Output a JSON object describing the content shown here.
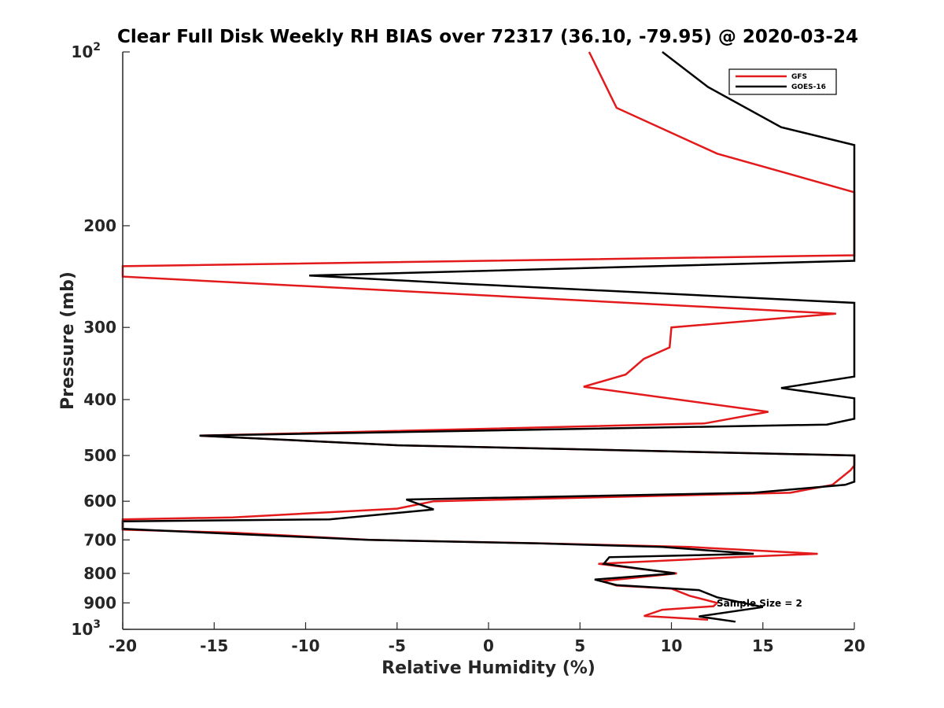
{
  "chart_data": {
    "type": "line",
    "title": "Clear Full Disk Weekly RH BIAS over 72317 (36.10, -79.95) @ 2020-03-24",
    "xlabel": "Relative Humidity (%)",
    "ylabel": "Pressure (mb)",
    "xlim": [
      -20,
      20
    ],
    "ylim": [
      100,
      1000
    ],
    "y_scale": "log",
    "y_reversed": true,
    "grid": false,
    "legend_position": "top-right",
    "x_ticks": [
      -20,
      -15,
      -10,
      -5,
      0,
      5,
      10,
      15,
      20
    ],
    "x_tick_labels": [
      "-20",
      "-15",
      "-10",
      "-5",
      "0",
      "5",
      "10",
      "15",
      "20"
    ],
    "y_ticks": [
      100,
      200,
      300,
      400,
      500,
      600,
      700,
      800,
      900,
      1000
    ],
    "y_tick_labels": [
      {
        "base": "10",
        "exp": "2"
      },
      {
        "base": "200",
        "exp": ""
      },
      {
        "base": "300",
        "exp": ""
      },
      {
        "base": "400",
        "exp": ""
      },
      {
        "base": "500",
        "exp": ""
      },
      {
        "base": "600",
        "exp": ""
      },
      {
        "base": "700",
        "exp": ""
      },
      {
        "base": "800",
        "exp": ""
      },
      {
        "base": "900",
        "exp": ""
      },
      {
        "base": "10",
        "exp": "3"
      }
    ],
    "series": [
      {
        "name": "GFS",
        "color": "#e31a1c",
        "points": [
          [
            5.5,
            100
          ],
          [
            7,
            125
          ],
          [
            12.5,
            150
          ],
          [
            20,
            175
          ],
          [
            20,
            225
          ],
          [
            -20,
            235
          ],
          [
            -20,
            245
          ],
          [
            19,
            284
          ],
          [
            10,
            300
          ],
          [
            9.9,
            325
          ],
          [
            8.5,
            340
          ],
          [
            7.5,
            362
          ],
          [
            5.2,
            380
          ],
          [
            15.3,
            420
          ],
          [
            11.8,
            440
          ],
          [
            -15.8,
            462
          ],
          [
            -5,
            480
          ],
          [
            20,
            500
          ],
          [
            20,
            520
          ],
          [
            19.8,
            530
          ],
          [
            18.8,
            562
          ],
          [
            16.5,
            580
          ],
          [
            -3,
            600
          ],
          [
            -5,
            618
          ],
          [
            -14,
            640
          ],
          [
            -20,
            645
          ],
          [
            -20,
            672
          ],
          [
            -14,
            680
          ],
          [
            -6.5,
            700
          ],
          [
            3,
            710
          ],
          [
            11,
            720
          ],
          [
            18,
            740
          ],
          [
            13.5,
            750
          ],
          [
            6,
            770
          ],
          [
            10.3,
            800
          ],
          [
            6.2,
            825
          ],
          [
            7,
            840
          ],
          [
            10,
            850
          ],
          [
            11,
            875
          ],
          [
            12.5,
            900
          ],
          [
            12.3,
            912
          ],
          [
            9.5,
            925
          ],
          [
            8.5,
            948
          ],
          [
            12,
            962
          ]
        ]
      },
      {
        "name": "GOES-16",
        "color": "#000000",
        "points": [
          [
            9.5,
            100
          ],
          [
            12,
            115
          ],
          [
            16,
            135
          ],
          [
            20,
            145
          ],
          [
            20,
            230
          ],
          [
            -9.8,
            244
          ],
          [
            -1.5,
            252
          ],
          [
            20,
            272
          ],
          [
            20,
            365
          ],
          [
            16,
            382
          ],
          [
            20,
            398
          ],
          [
            20,
            432
          ],
          [
            18.5,
            442
          ],
          [
            -15.8,
            462
          ],
          [
            -5,
            480
          ],
          [
            20,
            500
          ],
          [
            20,
            555
          ],
          [
            19.5,
            562
          ],
          [
            14.5,
            580
          ],
          [
            -4.5,
            596
          ],
          [
            -3,
            620
          ],
          [
            -8.7,
            645
          ],
          [
            -20,
            650
          ],
          [
            -20,
            670
          ],
          [
            -6.6,
            700
          ],
          [
            2.8,
            710
          ],
          [
            9.5,
            720
          ],
          [
            14.5,
            740
          ],
          [
            6.6,
            750
          ],
          [
            6.3,
            770
          ],
          [
            10.2,
            800
          ],
          [
            5.8,
            820
          ],
          [
            7,
            838
          ],
          [
            11.5,
            855
          ],
          [
            12.5,
            880
          ],
          [
            15,
            915
          ],
          [
            11.5,
            950
          ],
          [
            13.5,
            970
          ]
        ]
      }
    ],
    "annotation": "Sample Size = 2"
  },
  "colors": {
    "gfs": "#e31a1c",
    "goes": "#000000",
    "axis": "#262626",
    "background": "#ffffff"
  }
}
